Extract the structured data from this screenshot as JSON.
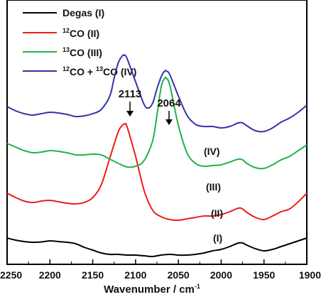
{
  "chart_data": {
    "type": "line",
    "title": "",
    "xlabel": "Wavenumber / cm",
    "xlabel_sup": "-1",
    "ylabel": "",
    "xlim": [
      2250,
      1900
    ],
    "x_reversed": true,
    "xticks": [
      2250,
      2200,
      2150,
      2100,
      2050,
      2000,
      1950,
      1900
    ],
    "grid": false,
    "legend_position": "top-left",
    "series": [
      {
        "id": "I",
        "legend": {
          "pre": "Degas (I)",
          "sup1": "",
          "mid": "",
          "sup2": "",
          "post": ""
        },
        "label": "(I)",
        "color": "#000000",
        "x": [
          2250,
          2240,
          2230,
          2220,
          2210,
          2200,
          2190,
          2180,
          2170,
          2160,
          2150,
          2140,
          2130,
          2120,
          2110,
          2100,
          2090,
          2080,
          2070,
          2060,
          2050,
          2040,
          2030,
          2020,
          2010,
          2000,
          1990,
          1980,
          1975,
          1970,
          1960,
          1950,
          1940,
          1930,
          1920,
          1910,
          1900
        ],
        "y": [
          0.05,
          0.02,
          0.0,
          -0.01,
          -0.005,
          0.01,
          0.0,
          -0.01,
          -0.03,
          -0.08,
          -0.12,
          -0.16,
          -0.18,
          -0.18,
          -0.19,
          -0.19,
          -0.2,
          -0.21,
          -0.19,
          -0.18,
          -0.19,
          -0.19,
          -0.18,
          -0.16,
          -0.13,
          -0.11,
          -0.07,
          -0.02,
          -0.02,
          -0.05,
          -0.1,
          -0.13,
          -0.11,
          -0.07,
          -0.03,
          0.01,
          0.05
        ]
      },
      {
        "id": "II",
        "legend": {
          "pre": "",
          "sup1": "12",
          "mid": "CO (II)",
          "sup2": "",
          "post": ""
        },
        "label": "(II)",
        "color": "#ee1c1c",
        "x": [
          2250,
          2240,
          2230,
          2220,
          2210,
          2200,
          2190,
          2180,
          2170,
          2160,
          2150,
          2140,
          2130,
          2120,
          2115,
          2113,
          2110,
          2100,
          2090,
          2080,
          2070,
          2060,
          2050,
          2040,
          2030,
          2020,
          2010,
          2000,
          1990,
          1980,
          1975,
          1970,
          1960,
          1950,
          1940,
          1930,
          1920,
          1910,
          1900
        ],
        "y": [
          0.68,
          0.62,
          0.57,
          0.55,
          0.57,
          0.58,
          0.56,
          0.54,
          0.53,
          0.55,
          0.62,
          0.8,
          1.18,
          1.55,
          1.64,
          1.65,
          1.62,
          1.2,
          0.72,
          0.44,
          0.35,
          0.31,
          0.3,
          0.32,
          0.34,
          0.36,
          0.36,
          0.38,
          0.42,
          0.47,
          0.46,
          0.41,
          0.34,
          0.31,
          0.36,
          0.42,
          0.46,
          0.56,
          0.68
        ]
      },
      {
        "id": "III",
        "legend": {
          "pre": "",
          "sup1": "13",
          "mid": "CO (III)",
          "sup2": "",
          "post": ""
        },
        "label": "(III)",
        "color": "#21b24b",
        "x": [
          2250,
          2240,
          2230,
          2220,
          2210,
          2200,
          2190,
          2180,
          2170,
          2160,
          2150,
          2140,
          2130,
          2120,
          2110,
          2100,
          2090,
          2080,
          2075,
          2070,
          2066,
          2064,
          2060,
          2050,
          2040,
          2030,
          2020,
          2010,
          2000,
          1990,
          1980,
          1975,
          1970,
          1960,
          1950,
          1940,
          1930,
          1920,
          1910,
          1900
        ],
        "y": [
          1.38,
          1.33,
          1.28,
          1.25,
          1.26,
          1.28,
          1.27,
          1.25,
          1.22,
          1.22,
          1.23,
          1.22,
          1.16,
          1.1,
          1.05,
          1.06,
          1.14,
          1.42,
          1.78,
          2.18,
          2.3,
          2.3,
          2.2,
          1.64,
          1.25,
          1.1,
          1.06,
          1.07,
          1.08,
          1.12,
          1.16,
          1.15,
          1.1,
          1.04,
          1.03,
          1.08,
          1.15,
          1.2,
          1.28,
          1.36
        ]
      },
      {
        "id": "IV",
        "legend": {
          "pre": "",
          "sup1": "12",
          "mid": "CO + ",
          "sup2": "13",
          "post": "CO (IV)"
        },
        "label": "(IV)",
        "color": "#3333aa",
        "x": [
          2250,
          2240,
          2230,
          2220,
          2210,
          2200,
          2190,
          2180,
          2170,
          2160,
          2150,
          2140,
          2130,
          2125,
          2120,
          2115,
          2113,
          2110,
          2100,
          2090,
          2085,
          2080,
          2075,
          2070,
          2066,
          2064,
          2060,
          2050,
          2040,
          2030,
          2020,
          2010,
          2000,
          1990,
          1980,
          1975,
          1970,
          1960,
          1950,
          1940,
          1930,
          1920,
          1910,
          1900
        ],
        "y": [
          1.9,
          1.84,
          1.8,
          1.78,
          1.8,
          1.82,
          1.81,
          1.79,
          1.76,
          1.77,
          1.8,
          1.86,
          2.05,
          2.3,
          2.52,
          2.62,
          2.62,
          2.58,
          2.25,
          1.93,
          1.88,
          1.95,
          2.15,
          2.32,
          2.4,
          2.4,
          2.35,
          2.05,
          1.78,
          1.65,
          1.62,
          1.62,
          1.6,
          1.62,
          1.67,
          1.67,
          1.63,
          1.56,
          1.55,
          1.6,
          1.68,
          1.74,
          1.82,
          1.92
        ]
      }
    ],
    "annotations": [
      {
        "text": "2113",
        "x": 2113
      },
      {
        "text": "2064",
        "x": 2064
      }
    ]
  }
}
